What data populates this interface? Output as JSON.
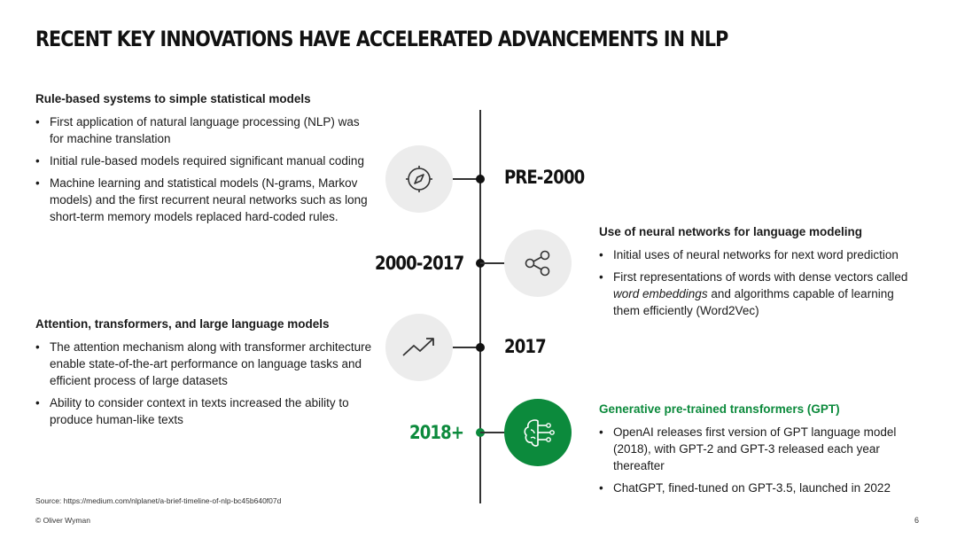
{
  "title": "RECENT KEY INNOVATIONS HAVE ACCELERATED ADVANCEMENTS IN NLP",
  "left_top": {
    "heading": "Rule-based systems to simple statistical models",
    "bullets": [
      "First application of natural language processing (NLP) was for machine translation",
      "Initial rule-based models required significant manual coding",
      "Machine learning and statistical models (N-grams, Markov models) and the first recurrent neural networks such as long short-term memory models replaced hard-coded rules."
    ]
  },
  "left_bottom": {
    "heading": "Attention, transformers, and large language models",
    "bullets": [
      "The attention mechanism along with transformer architecture enable state-of-the-art performance on language tasks and efficient process of large datasets",
      "Ability to consider context in texts increased the ability to produce human-like texts"
    ]
  },
  "right_top": {
    "heading": "Use of neural networks for language modeling",
    "bullets": [
      "Initial uses of neural networks for next word prediction",
      {
        "before": "First representations of words with dense vectors called ",
        "emphasis": "word embeddings",
        "after": " and algorithms capable of learning them efficiently (Word2Vec)"
      }
    ]
  },
  "right_bottom": {
    "heading": "Generative pre-trained transformers (GPT)",
    "bullets": [
      "OpenAI releases first version of GPT language model (2018), with GPT-2 and GPT-3 released each year thereafter",
      "ChatGPT, fined-tuned on GPT-3.5, launched in 2022"
    ]
  },
  "timeline": {
    "eras": [
      "PRE-2000",
      "2000-2017",
      "2017",
      "2018+"
    ],
    "icons": [
      "compass-icon",
      "share-icon",
      "trending-up-icon",
      "brain-network-icon"
    ]
  },
  "colors": {
    "accent_green": "#0c8a3c",
    "circle_gray": "#ececec",
    "text": "#1a1a1a"
  },
  "footer": {
    "source": "Source: https://medium.com/nlplanet/a-brief-timeline-of-nlp-bc45b640f07d",
    "copyright": "© Oliver Wyman",
    "page_number": "6"
  }
}
